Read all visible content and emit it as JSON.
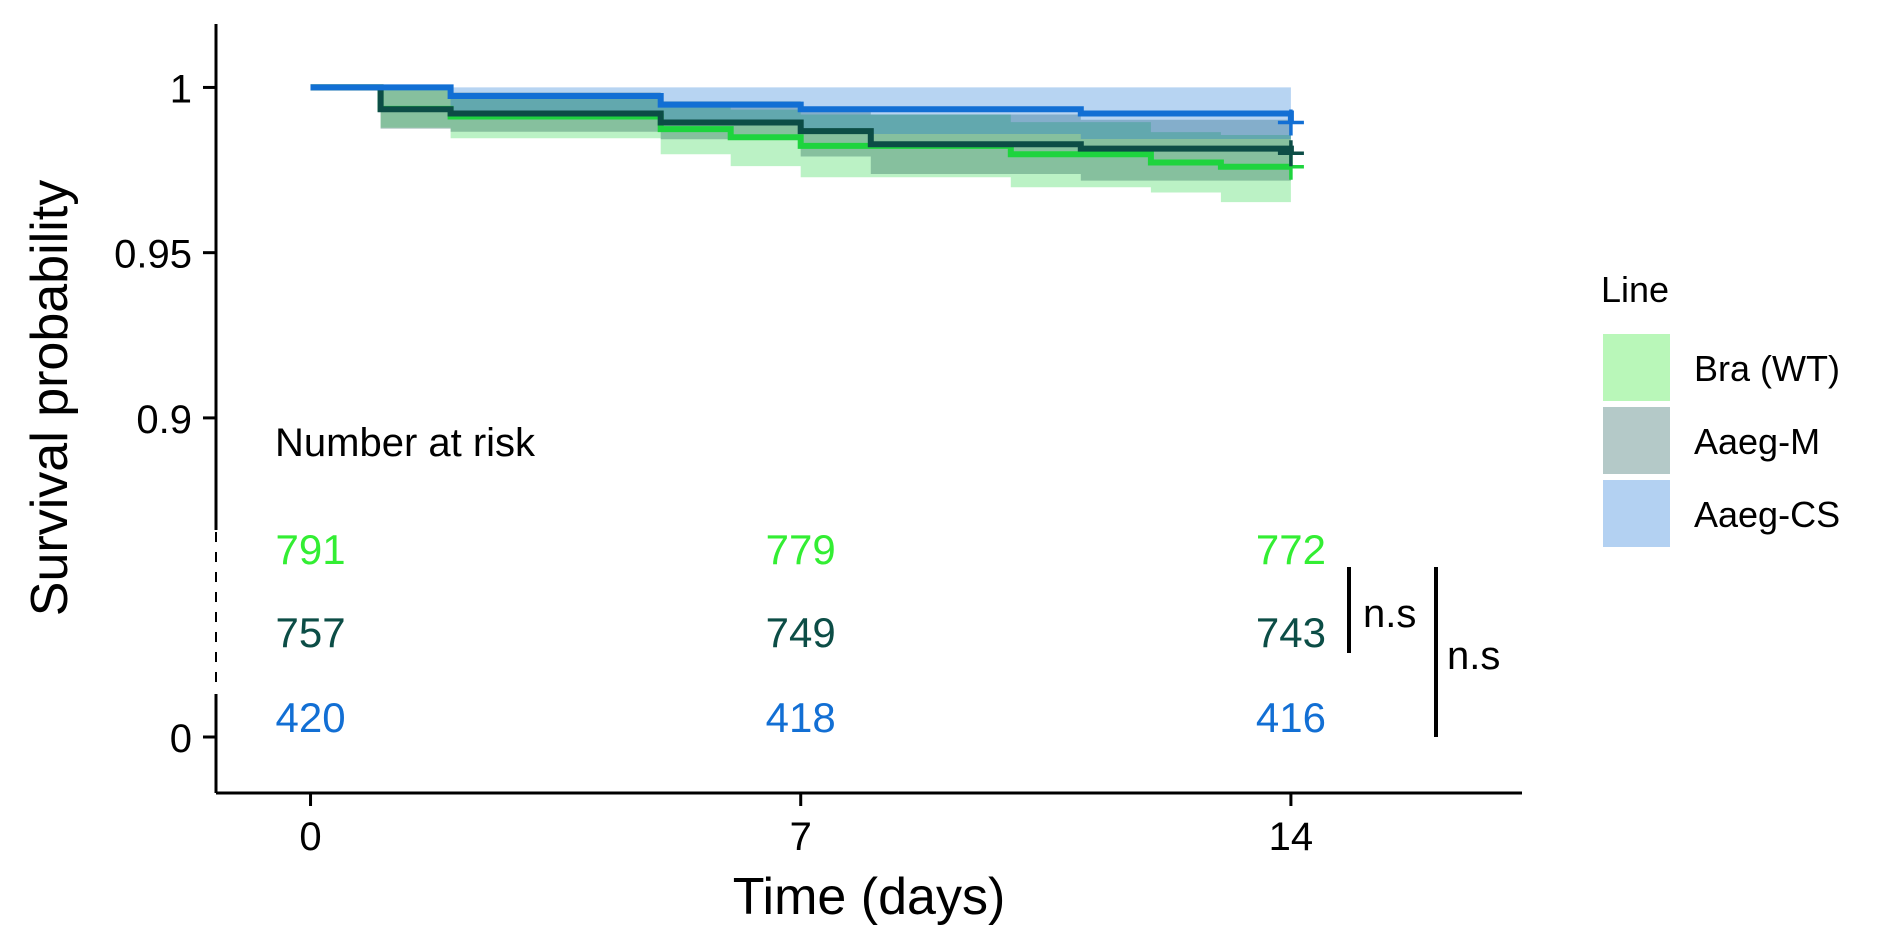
{
  "chart_data": {
    "type": "line",
    "subtype": "kaplan-meier-step",
    "xlabel": "Time (days)",
    "ylabel": "Survival probability",
    "x_ticks": [
      "0",
      "7",
      "14"
    ],
    "x_tick_values": [
      0,
      7,
      14
    ],
    "xlim": [
      -1.35,
      17.3
    ],
    "y_ticks": [
      "1",
      "0.95",
      "0.9",
      "0"
    ],
    "y_tick_values": [
      1,
      0.95,
      0.9,
      0
    ],
    "ylim": [
      0.88,
      1.008
    ],
    "axis_break": true,
    "grid": false,
    "legend": {
      "title": "Line",
      "placement": "right",
      "entries": [
        "Bra (WT)",
        "Aaeg-M",
        "Aaeg-CS"
      ]
    },
    "series": [
      {
        "name": "Bra (WT)",
        "line_color": "#1ed43e",
        "ci_color": "#b9f7b9",
        "steps": [
          [
            0,
            1
          ],
          [
            1,
            0.9935
          ],
          [
            2,
            0.9912
          ],
          [
            5,
            0.9874
          ],
          [
            6,
            0.9849
          ],
          [
            7,
            0.9823
          ],
          [
            10,
            0.9798
          ],
          [
            12,
            0.9773
          ],
          [
            13,
            0.976
          ],
          [
            14,
            0.976
          ]
        ],
        "ci": [
          [
            0,
            1,
            1
          ],
          [
            1,
            0.9878,
            0.9993
          ],
          [
            2,
            0.9846,
            0.9978
          ],
          [
            5,
            0.9798,
            0.9949
          ],
          [
            6,
            0.9762,
            0.9933
          ],
          [
            7,
            0.9728,
            0.9918
          ],
          [
            10,
            0.9698,
            0.9895
          ],
          [
            12,
            0.9682,
            0.9865
          ],
          [
            13,
            0.9653,
            0.9856
          ],
          [
            14,
            0.9653,
            0.9856
          ]
        ],
        "censor_at_end": 0.976,
        "number_at_risk": [
          "791",
          "779",
          "772"
        ]
      },
      {
        "name": "Aaeg-M",
        "line_color": "#0c4d46",
        "ci_color": "#b4c9c8",
        "steps": [
          [
            0,
            1
          ],
          [
            1,
            0.9934
          ],
          [
            2,
            0.9921
          ],
          [
            5,
            0.9894
          ],
          [
            7,
            0.9868
          ],
          [
            8,
            0.9828
          ],
          [
            11,
            0.9815
          ],
          [
            14,
            0.9801
          ]
        ],
        "ci": [
          [
            0,
            1,
            1
          ],
          [
            1,
            0.9875,
            0.9993
          ],
          [
            2,
            0.9866,
            0.9985
          ],
          [
            5,
            0.9843,
            0.9958
          ],
          [
            7,
            0.9791,
            0.9927
          ],
          [
            8,
            0.9738,
            0.9918
          ],
          [
            11,
            0.9718,
            0.9902
          ],
          [
            14,
            0.9718,
            0.9902
          ]
        ],
        "censor_at_end": 0.9801,
        "number_at_risk": [
          "757",
          "749",
          "743"
        ]
      },
      {
        "name": "Aaeg-CS",
        "line_color": "#126fd4",
        "ci_color": "#b3d1f2",
        "steps": [
          [
            0,
            1
          ],
          [
            2,
            0.9974
          ],
          [
            5,
            0.9948
          ],
          [
            7,
            0.9934
          ],
          [
            11,
            0.9921
          ],
          [
            14,
            0.9894
          ]
        ],
        "ci": [
          [
            0,
            1,
            1
          ],
          [
            2,
            0.9929,
            1
          ],
          [
            5,
            0.9889,
            1
          ],
          [
            7,
            0.9859,
            1
          ],
          [
            11,
            0.9844,
            1
          ],
          [
            14,
            0.9844,
            1
          ]
        ],
        "censor_at_end": 0.9894,
        "number_at_risk": [
          "420",
          "418",
          "416"
        ]
      }
    ],
    "number_at_risk": {
      "title": "Number at risk"
    },
    "comparisons": [
      {
        "groups": [
          "Bra (WT)",
          "Aaeg-M"
        ],
        "label": "n.s"
      },
      {
        "groups": [
          "Bra (WT)",
          "Aaeg-CS"
        ],
        "label": "n.s"
      }
    ]
  }
}
